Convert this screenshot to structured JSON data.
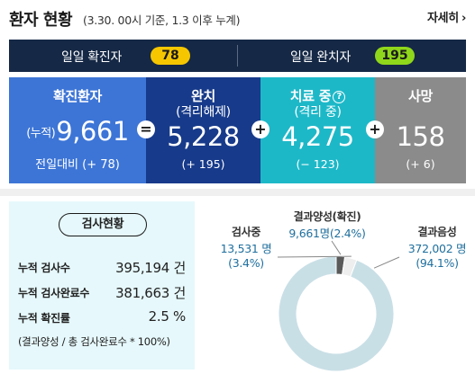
{
  "header": {
    "title": "환자 현황",
    "subtitle": "(3.30. 00시 기준, 1.3 이후 누계)",
    "detail_link": "자세히",
    "detail_arrow": "›"
  },
  "daily": {
    "confirmed_label": "일일 확진자",
    "confirmed_value": "78",
    "released_label": "일일 완치자",
    "released_value": "195"
  },
  "cards": {
    "confirmed": {
      "title": "확진환자",
      "prefix": "(누적)",
      "value": "9,661",
      "delta": "전일대비 (+ 78)"
    },
    "released": {
      "title": "완치",
      "sub": "(격리해제)",
      "value": "5,228",
      "delta": "(+ 195)"
    },
    "treatment": {
      "title": "치료 중",
      "help": "?",
      "sub": "(격리 중)",
      "value": "4,275",
      "delta": "(− 123)"
    },
    "deaths": {
      "title": "사망",
      "value": "158",
      "delta": "(+ 6)"
    },
    "ops": [
      "=",
      "+",
      "+"
    ]
  },
  "tests": {
    "button_label": "검사현황",
    "rows": [
      {
        "label": "누적 검사수",
        "value": "395,194 건"
      },
      {
        "label": "누적 검사완료수",
        "value": "381,663 건"
      },
      {
        "label": "누적 확진률",
        "value": "2.5 %"
      }
    ],
    "note": "(결과양성 / 총 검사완료수 * 100%)"
  },
  "donut": {
    "positive": {
      "title": "결과양성(확진)",
      "value": "9,661명(2.4%)",
      "fraction": 0.024
    },
    "testing": {
      "title": "검사중",
      "value": "13,531 명",
      "pct": "(3.4%)",
      "fraction": 0.034
    },
    "negative": {
      "title": "결과음성",
      "value": "372,002 명",
      "pct": "(94.1%)",
      "fraction": 0.941
    }
  },
  "colors": {
    "daybar": "#152845",
    "confirmed_card": "#3d75d6",
    "released_card": "#173a8a",
    "treatment_card": "#1db8c8",
    "deaths_card": "#8b8b8b",
    "yellow_pill": "#f6c700",
    "green_pill": "#8fd71a",
    "tests_bg": "#e6f8fb",
    "donut_negative": "#c9dfe6",
    "donut_testing": "#eeeeee",
    "donut_positive": "#5a5a5a"
  }
}
